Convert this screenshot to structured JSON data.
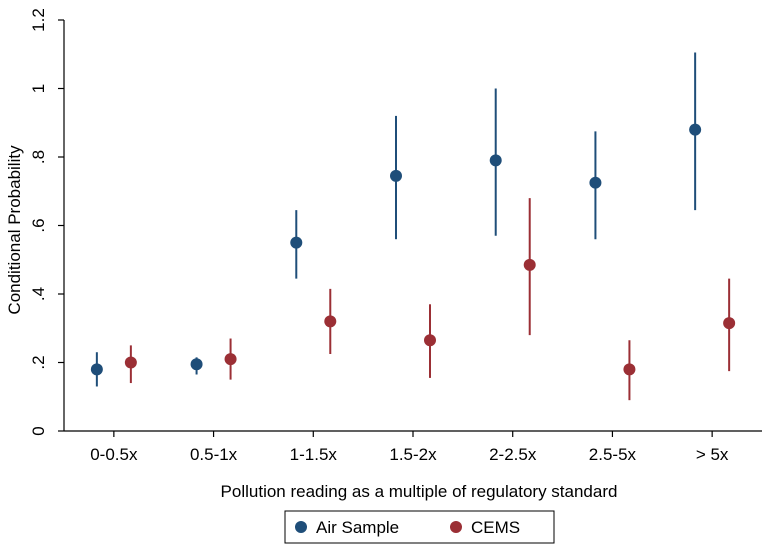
{
  "chart_data": {
    "type": "scatter",
    "xlabel": "Pollution reading as a multiple of regulatory standard",
    "ylabel": "Conditional Probability",
    "categories": [
      "0-0.5x",
      "0.5-1x",
      "1-1.5x",
      "1.5-2x",
      "2-2.5x",
      "2.5-5x",
      "> 5x"
    ],
    "ylim": [
      0,
      1.2
    ],
    "yticks": [
      "0",
      ".2",
      ".4",
      ".6",
      ".8",
      "1",
      "1.2"
    ],
    "ytick_values": [
      0,
      0.2,
      0.4,
      0.6,
      0.8,
      1.0,
      1.2
    ],
    "grid": false,
    "legend_position": "bottom",
    "series": [
      {
        "name": "Air Sample",
        "color": "#1f4e79",
        "values": [
          0.18,
          0.195,
          0.55,
          0.745,
          0.79,
          0.725,
          0.88
        ],
        "lower": [
          0.13,
          0.165,
          0.445,
          0.56,
          0.57,
          0.56,
          0.645
        ],
        "upper": [
          0.23,
          0.215,
          0.645,
          0.92,
          1.0,
          0.875,
          1.105
        ]
      },
      {
        "name": "CEMS",
        "color": "#9b2f35",
        "values": [
          0.2,
          0.21,
          0.32,
          0.265,
          0.485,
          0.18,
          0.315
        ],
        "lower": [
          0.14,
          0.15,
          0.225,
          0.155,
          0.28,
          0.09,
          0.175
        ],
        "upper": [
          0.25,
          0.27,
          0.415,
          0.37,
          0.68,
          0.265,
          0.445
        ]
      }
    ]
  }
}
